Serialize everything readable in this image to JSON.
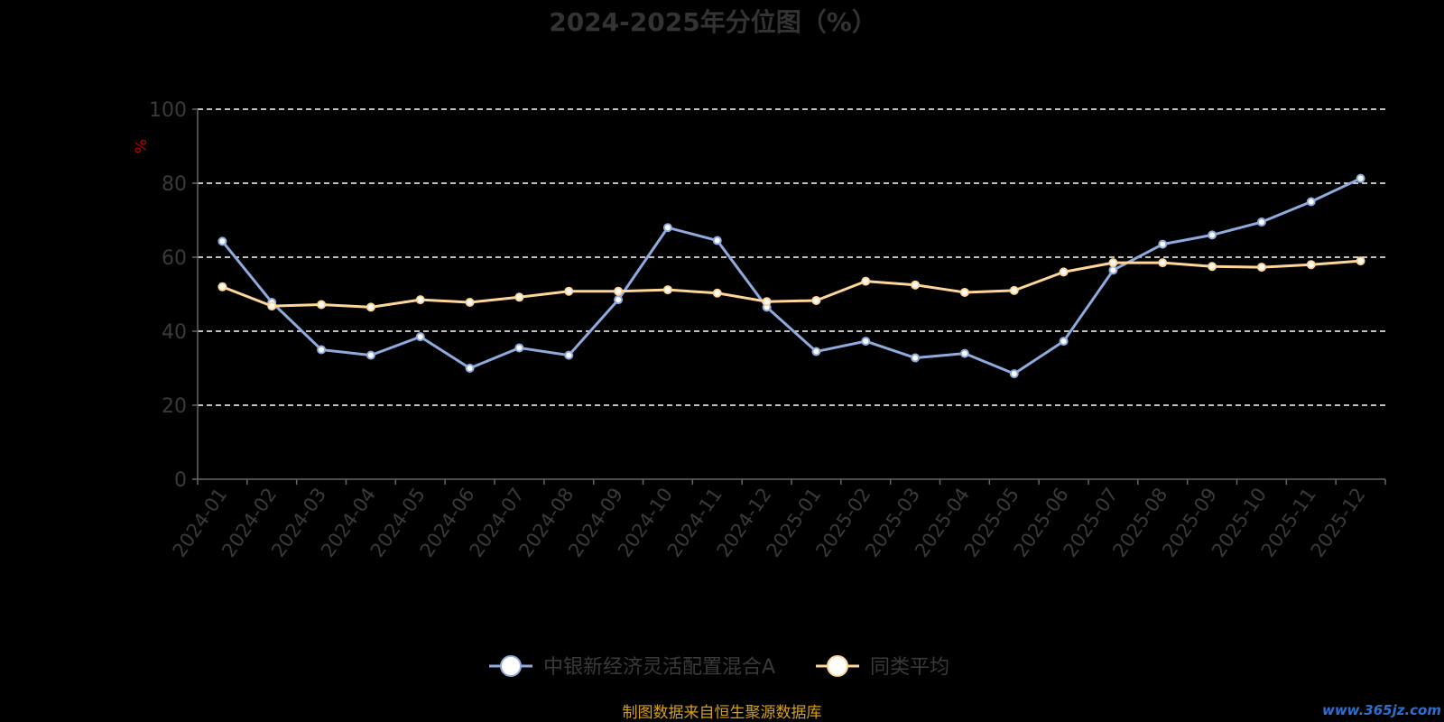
{
  "chart_data": {
    "type": "line",
    "title": "2024-2025年分位图（%）",
    "ylabel": "%",
    "xlabel": "",
    "ylim": [
      0,
      100
    ],
    "yticks": [
      0,
      20,
      40,
      60,
      80,
      100
    ],
    "grid": true,
    "legend_position": "bottom",
    "categories": [
      "2024-01",
      "2024-02",
      "2024-03",
      "2024-04",
      "2024-05",
      "2024-06",
      "2024-07",
      "2024-08",
      "2024-09",
      "2024-10",
      "2024-11",
      "2024-12",
      "2025-01",
      "2025-02",
      "2025-03",
      "2025-04",
      "2025-05",
      "2025-06",
      "2025-07",
      "2025-08",
      "2025-09",
      "2025-10",
      "2025-11",
      "2025-12"
    ],
    "series": [
      {
        "name": "中银新经济灵活配置混合A",
        "color": "#8faadc",
        "values": [
          64.3,
          47.8,
          35.0,
          33.5,
          38.5,
          30.0,
          35.5,
          33.5,
          48.5,
          68.0,
          64.5,
          46.5,
          34.5,
          37.3,
          32.8,
          34.0,
          28.5,
          37.3,
          56.5,
          63.5,
          66.0,
          69.5,
          75.0,
          81.3
        ]
      },
      {
        "name": "同类平均",
        "color": "#ffd699",
        "values": [
          52.0,
          46.8,
          47.2,
          46.5,
          48.5,
          47.8,
          49.2,
          50.8,
          50.8,
          51.2,
          50.3,
          48.0,
          48.3,
          53.5,
          52.5,
          50.5,
          51.0,
          56.0,
          58.5,
          58.5,
          57.5,
          57.3,
          58.0,
          59.0
        ]
      }
    ]
  },
  "footer": {
    "source": "制图数据来自恒生聚源数据库"
  },
  "watermark": {
    "text": "www.365jz.com"
  },
  "colors": {
    "background": "#000000",
    "axis": "#666666",
    "grid": "#ffffff",
    "text": "#3a3a3a",
    "unit": "#c00000",
    "source": "#d4a017"
  }
}
